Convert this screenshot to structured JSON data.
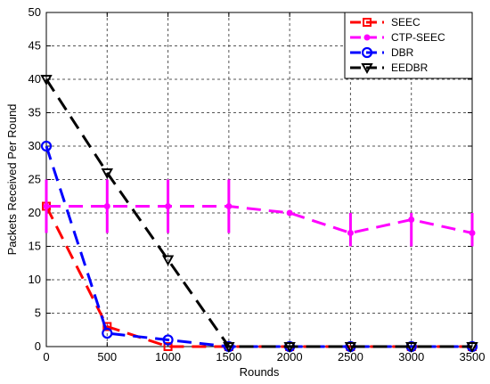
{
  "chart_data": {
    "type": "line",
    "title": "",
    "xlabel": "Rounds",
    "ylabel": "Packets Received Per Round",
    "xlim": [
      0,
      3500
    ],
    "ylim": [
      0,
      50
    ],
    "xticks": [
      0,
      500,
      1000,
      1500,
      2000,
      2500,
      3000,
      3500
    ],
    "yticks": [
      0,
      5,
      10,
      15,
      20,
      25,
      30,
      35,
      40,
      45,
      50
    ],
    "grid": true,
    "legend_position": "top-right",
    "series": [
      {
        "name": "SEEC",
        "color": "#ff0000",
        "marker": "square",
        "x": [
          0,
          500,
          1000,
          1500,
          2000,
          2500,
          3000,
          3500
        ],
        "y": [
          21,
          3,
          0,
          0,
          0,
          0,
          0,
          0
        ]
      },
      {
        "name": "CTP-SEEC",
        "color": "#ff00ff",
        "marker": "dot",
        "x": [
          0,
          500,
          1000,
          1500,
          2000,
          2500,
          3000,
          3500
        ],
        "y": [
          21,
          21,
          21,
          21,
          20,
          17,
          19,
          17
        ],
        "error_low": [
          17,
          17,
          17,
          17,
          20,
          15,
          15,
          15
        ],
        "error_high": [
          25,
          25,
          25,
          25,
          20,
          20,
          20,
          20
        ]
      },
      {
        "name": "DBR",
        "color": "#0000ff",
        "marker": "circle",
        "x": [
          0,
          500,
          1000,
          1500,
          2000,
          2500,
          3000,
          3500
        ],
        "y": [
          30,
          2,
          1,
          0,
          0,
          0,
          0,
          0
        ]
      },
      {
        "name": "EEDBR",
        "color": "#000000",
        "marker": "triangle-down",
        "x": [
          0,
          500,
          1000,
          1500,
          2000,
          2500,
          3000,
          3500
        ],
        "y": [
          40,
          26,
          13,
          0,
          0,
          0,
          0,
          0
        ]
      }
    ]
  }
}
